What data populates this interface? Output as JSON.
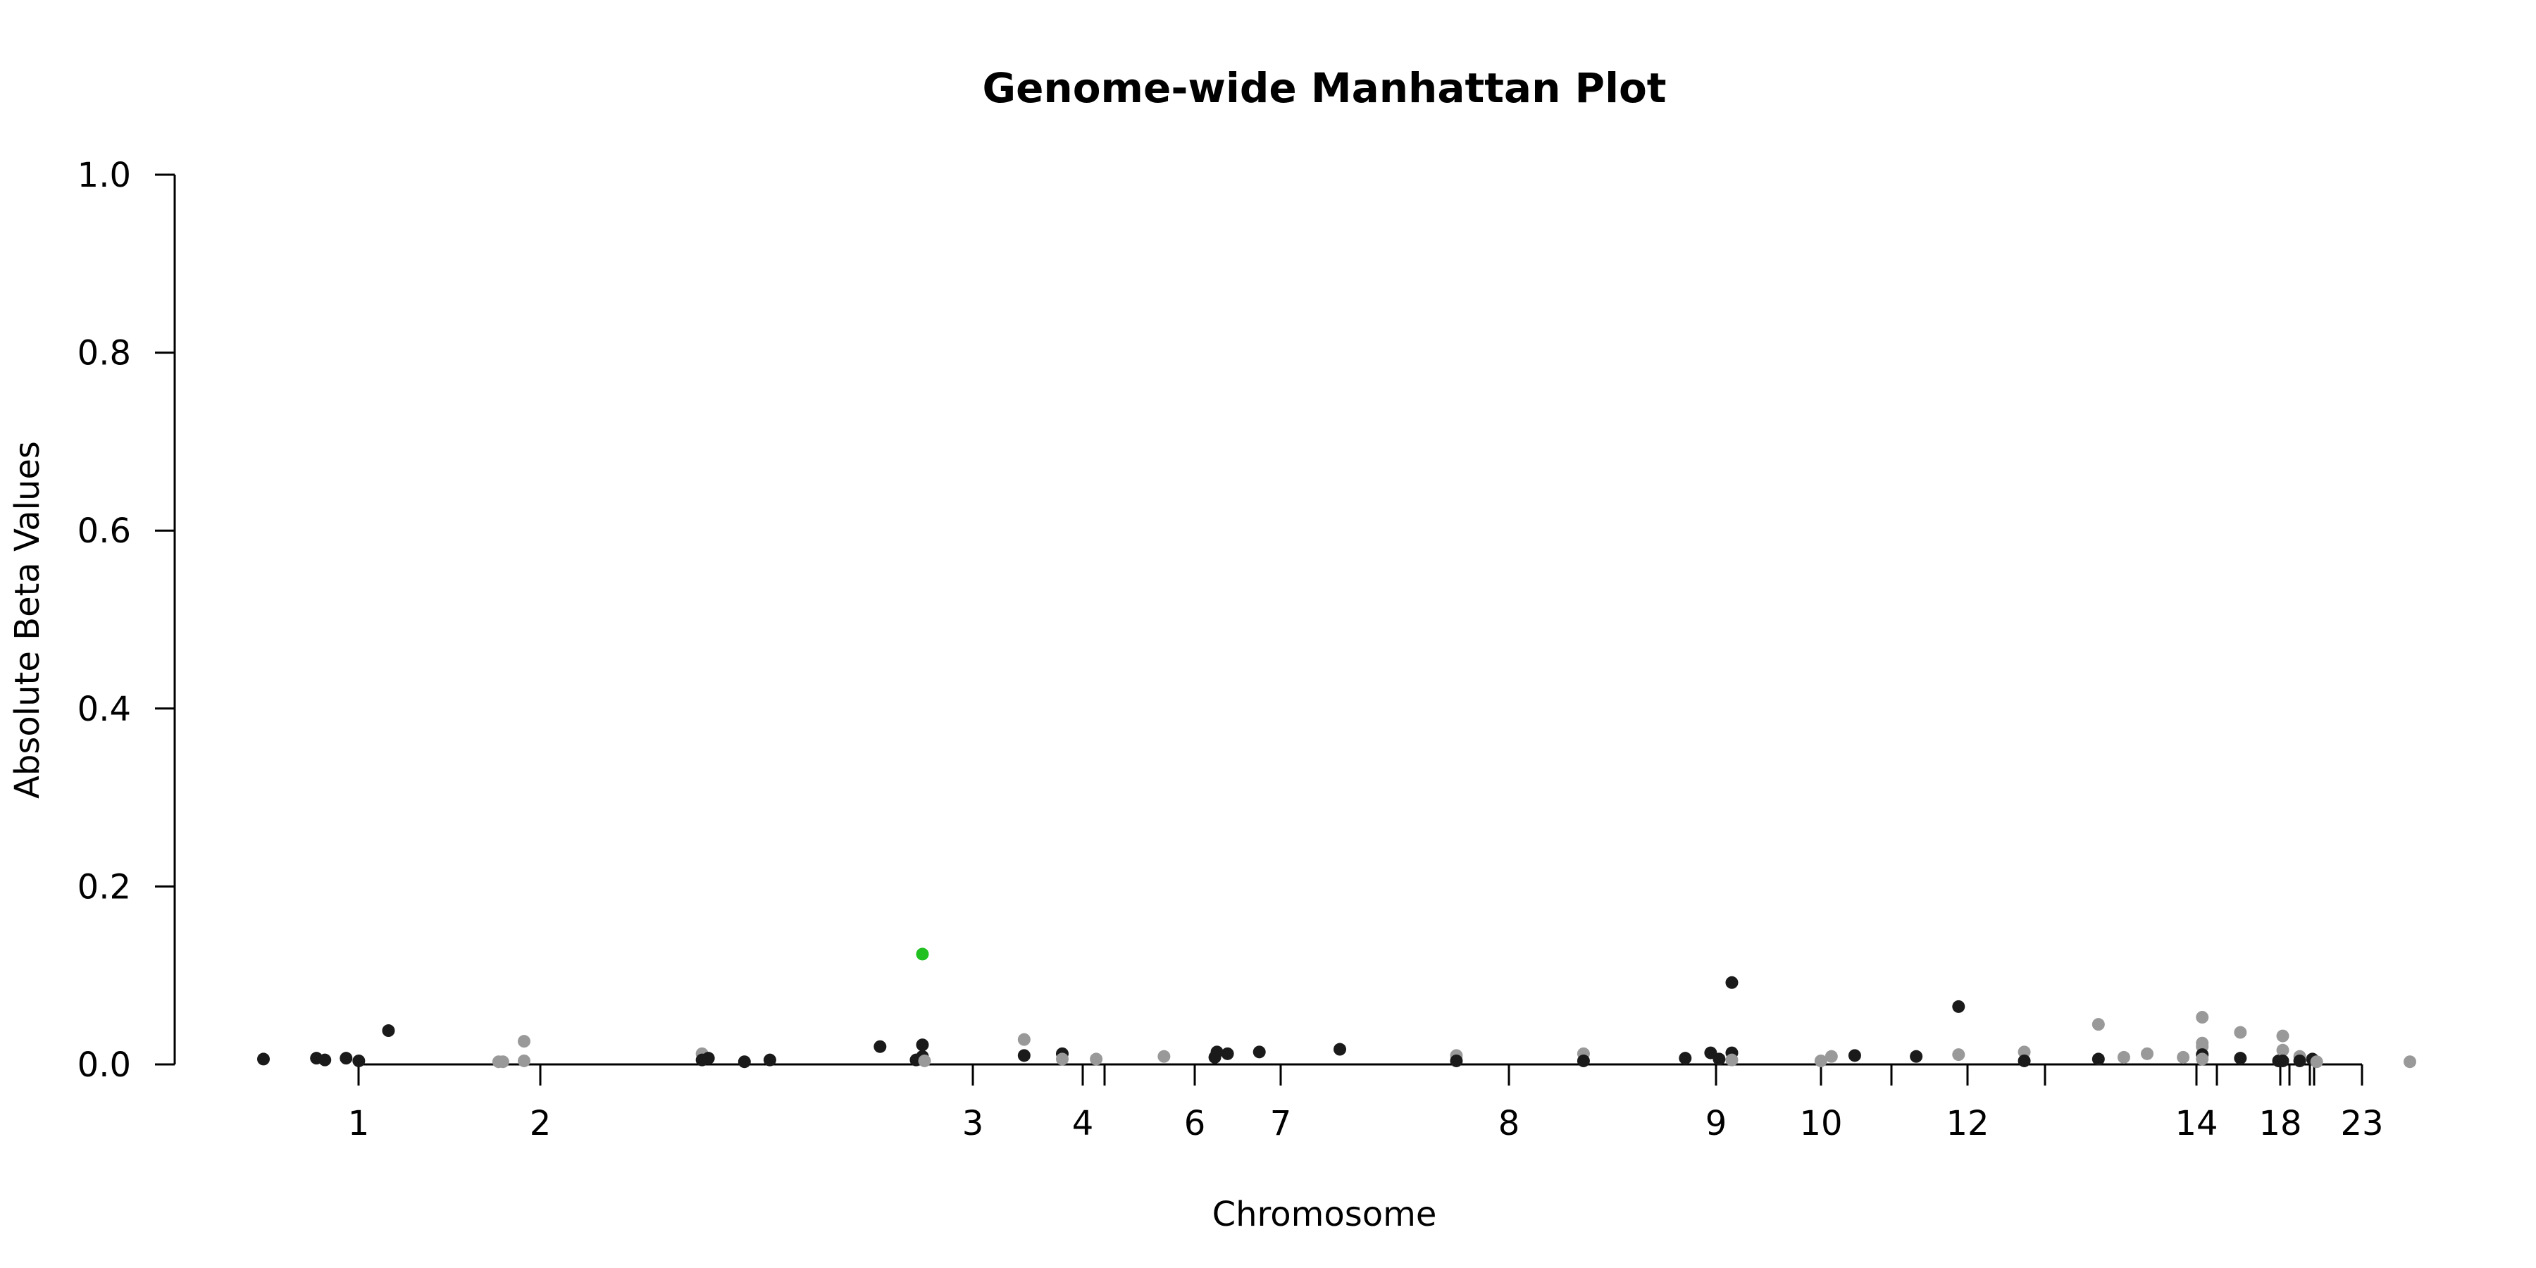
{
  "chart_data": {
    "type": "scatter",
    "title": "Genome-wide Manhattan Plot",
    "xlabel": "Chromosome",
    "ylabel": "Absolute Beta Values",
    "ylim": [
      0,
      1
    ],
    "y_ticks": [
      "0.0",
      "0.2",
      "0.4",
      "0.6",
      "0.8",
      "1.0"
    ],
    "x_tick_labels": [
      "1",
      "2",
      "3",
      "4",
      "6",
      "7",
      "8",
      "9",
      "10",
      "12",
      "14",
      "18",
      "23"
    ],
    "colors": {
      "odd": "#1a1a1a",
      "even": "#999999",
      "highlight": "#1fc01f",
      "axis": "#000000"
    },
    "grid": false,
    "legend": "none",
    "points": [
      {
        "chr": 1,
        "pos": 0.0,
        "y": 0.006,
        "c": "odd"
      },
      {
        "chr": 1,
        "pos": 0.25,
        "y": 0.007,
        "c": "odd"
      },
      {
        "chr": 1,
        "pos": 0.29,
        "y": 0.005,
        "c": "odd"
      },
      {
        "chr": 1,
        "pos": 0.39,
        "y": 0.007,
        "c": "odd"
      },
      {
        "chr": 1,
        "pos": 0.45,
        "y": 0.004,
        "c": "odd"
      },
      {
        "chr": 1,
        "pos": 0.59,
        "y": 0.038,
        "c": "odd"
      },
      {
        "chr": 2,
        "pos": 1.11,
        "y": 0.003,
        "c": "even"
      },
      {
        "chr": 2,
        "pos": 1.13,
        "y": 0.003,
        "c": "even"
      },
      {
        "chr": 2,
        "pos": 1.23,
        "y": 0.026,
        "c": "even"
      },
      {
        "chr": 2,
        "pos": 1.23,
        "y": 0.004,
        "c": "even"
      },
      {
        "chr": 2,
        "pos": 2.07,
        "y": 0.012,
        "c": "even"
      },
      {
        "chr": 3,
        "pos": 2.07,
        "y": 0.005,
        "c": "odd"
      },
      {
        "chr": 3,
        "pos": 2.1,
        "y": 0.007,
        "c": "odd"
      },
      {
        "chr": 3,
        "pos": 2.27,
        "y": 0.003,
        "c": "odd"
      },
      {
        "chr": 3,
        "pos": 2.39,
        "y": 0.005,
        "c": "odd"
      },
      {
        "chr": 3,
        "pos": 2.91,
        "y": 0.02,
        "c": "odd"
      },
      {
        "chr": 3,
        "pos": 3.08,
        "y": 0.005,
        "c": "odd"
      },
      {
        "chr": 3,
        "pos": 3.11,
        "y": 0.022,
        "c": "odd"
      },
      {
        "chr": 3,
        "pos": 3.11,
        "y": 0.124,
        "c": "highlight"
      },
      {
        "chr": 3,
        "pos": 3.11,
        "y": 0.009,
        "c": "odd"
      },
      {
        "chr": 3,
        "pos": 3.12,
        "y": 0.004,
        "c": "even"
      },
      {
        "chr": 4,
        "pos": 3.59,
        "y": 0.028,
        "c": "even"
      },
      {
        "chr": 4,
        "pos": 3.59,
        "y": 0.01,
        "c": "odd"
      },
      {
        "chr": 5,
        "pos": 3.77,
        "y": 0.012,
        "c": "odd"
      },
      {
        "chr": 5,
        "pos": 3.77,
        "y": 0.006,
        "c": "even"
      },
      {
        "chr": 5,
        "pos": 3.93,
        "y": 0.006,
        "c": "even"
      },
      {
        "chr": 6,
        "pos": 4.25,
        "y": 0.009,
        "c": "even"
      },
      {
        "chr": 7,
        "pos": 4.5,
        "y": 0.014,
        "c": "odd"
      },
      {
        "chr": 7,
        "pos": 4.49,
        "y": 0.008,
        "c": "odd"
      },
      {
        "chr": 7,
        "pos": 4.55,
        "y": 0.012,
        "c": "odd"
      },
      {
        "chr": 7,
        "pos": 4.7,
        "y": 0.014,
        "c": "odd"
      },
      {
        "chr": 7,
        "pos": 5.08,
        "y": 0.017,
        "c": "odd"
      },
      {
        "chr": 8,
        "pos": 5.63,
        "y": 0.01,
        "c": "even"
      },
      {
        "chr": 8,
        "pos": 5.63,
        "y": 0.004,
        "c": "odd"
      },
      {
        "chr": 8,
        "pos": 6.23,
        "y": 0.012,
        "c": "even"
      },
      {
        "chr": 8,
        "pos": 6.23,
        "y": 0.004,
        "c": "odd"
      },
      {
        "chr": 9,
        "pos": 6.71,
        "y": 0.007,
        "c": "odd"
      },
      {
        "chr": 9,
        "pos": 6.83,
        "y": 0.013,
        "c": "odd"
      },
      {
        "chr": 9,
        "pos": 6.87,
        "y": 0.006,
        "c": "odd"
      },
      {
        "chr": 9,
        "pos": 6.93,
        "y": 0.092,
        "c": "odd"
      },
      {
        "chr": 9,
        "pos": 6.93,
        "y": 0.013,
        "c": "odd"
      },
      {
        "chr": 9,
        "pos": 6.93,
        "y": 0.005,
        "c": "even"
      },
      {
        "chr": 10,
        "pos": 7.35,
        "y": 0.004,
        "c": "even"
      },
      {
        "chr": 10,
        "pos": 7.4,
        "y": 0.009,
        "c": "even"
      },
      {
        "chr": 10,
        "pos": 7.51,
        "y": 0.01,
        "c": "odd"
      },
      {
        "chr": 11,
        "pos": 7.8,
        "y": 0.009,
        "c": "odd"
      },
      {
        "chr": 11,
        "pos": 8.0,
        "y": 0.065,
        "c": "odd"
      },
      {
        "chr": 11,
        "pos": 8.0,
        "y": 0.011,
        "c": "even"
      },
      {
        "chr": 12,
        "pos": 8.31,
        "y": 0.014,
        "c": "even"
      },
      {
        "chr": 12,
        "pos": 8.31,
        "y": 0.004,
        "c": "odd"
      },
      {
        "chr": 13,
        "pos": 8.66,
        "y": 0.045,
        "c": "even"
      },
      {
        "chr": 13,
        "pos": 8.66,
        "y": 0.006,
        "c": "odd"
      },
      {
        "chr": 13,
        "pos": 8.78,
        "y": 0.008,
        "c": "even"
      },
      {
        "chr": 13,
        "pos": 8.89,
        "y": 0.012,
        "c": "even"
      },
      {
        "chr": 14,
        "pos": 9.06,
        "y": 0.008,
        "c": "even"
      },
      {
        "chr": 14,
        "pos": 9.15,
        "y": 0.053,
        "c": "even"
      },
      {
        "chr": 14,
        "pos": 9.15,
        "y": 0.024,
        "c": "even"
      },
      {
        "chr": 14,
        "pos": 9.15,
        "y": 0.02,
        "c": "even"
      },
      {
        "chr": 14,
        "pos": 9.15,
        "y": 0.011,
        "c": "odd"
      },
      {
        "chr": 14,
        "pos": 9.15,
        "y": 0.006,
        "c": "even"
      },
      {
        "chr": 15,
        "pos": 9.33,
        "y": 0.036,
        "c": "even"
      },
      {
        "chr": 15,
        "pos": 9.33,
        "y": 0.007,
        "c": "odd"
      },
      {
        "chr": 17,
        "pos": 9.51,
        "y": 0.004,
        "c": "odd"
      },
      {
        "chr": 18,
        "pos": 9.53,
        "y": 0.032,
        "c": "even"
      },
      {
        "chr": 18,
        "pos": 9.53,
        "y": 0.016,
        "c": "even"
      },
      {
        "chr": 18,
        "pos": 9.53,
        "y": 0.004,
        "c": "odd"
      },
      {
        "chr": 19,
        "pos": 9.61,
        "y": 0.009,
        "c": "even"
      },
      {
        "chr": 19,
        "pos": 9.61,
        "y": 0.004,
        "c": "odd"
      },
      {
        "chr": 20,
        "pos": 9.67,
        "y": 0.006,
        "c": "odd"
      },
      {
        "chr": 21,
        "pos": 9.69,
        "y": 0.003,
        "c": "even"
      },
      {
        "chr": 23,
        "pos": 10.13,
        "y": 0.003,
        "c": "even"
      }
    ]
  }
}
